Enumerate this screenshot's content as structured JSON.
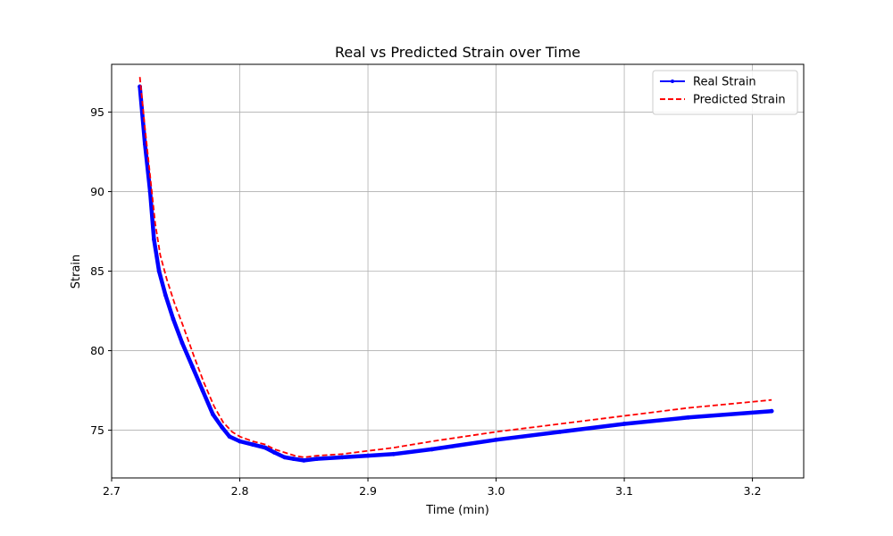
{
  "chart_data": {
    "type": "line",
    "title": "Real vs Predicted Strain over Time",
    "xlabel": "Time (min)",
    "ylabel": "Strain",
    "xlim": [
      2.7,
      3.24
    ],
    "ylim": [
      72,
      98
    ],
    "xticks": [
      2.7,
      2.8,
      2.9,
      3.0,
      3.1,
      3.2
    ],
    "xtick_labels": [
      "2.7",
      "2.8",
      "2.9",
      "3.0",
      "3.1",
      "3.2"
    ],
    "yticks": [
      75,
      80,
      85,
      90,
      95
    ],
    "ytick_labels": [
      "75",
      "80",
      "85",
      "90",
      "95"
    ],
    "grid": true,
    "legend": "top-right",
    "series": [
      {
        "name": "Real Strain",
        "color": "#0000ff",
        "style": "solid-markers",
        "x": [
          2.722,
          2.726,
          2.73,
          2.733,
          2.737,
          2.742,
          2.748,
          2.755,
          2.763,
          2.771,
          2.779,
          2.786,
          2.792,
          2.8,
          2.81,
          2.82,
          2.827,
          2.835,
          2.842,
          2.85,
          2.86,
          2.88,
          2.9,
          2.92,
          2.95,
          3.0,
          3.05,
          3.1,
          3.15,
          3.215
        ],
        "y": [
          96.6,
          93.0,
          90.0,
          87.0,
          85.0,
          83.5,
          82.0,
          80.5,
          79.0,
          77.5,
          76.0,
          75.2,
          74.6,
          74.3,
          74.1,
          73.9,
          73.6,
          73.3,
          73.2,
          73.1,
          73.2,
          73.3,
          73.4,
          73.5,
          73.8,
          74.4,
          74.9,
          75.4,
          75.8,
          76.2
        ]
      },
      {
        "name": "Predicted Strain",
        "color": "#ff0000",
        "style": "dashed",
        "x": [
          2.722,
          2.726,
          2.73,
          2.734,
          2.738,
          2.743,
          2.749,
          2.756,
          2.764,
          2.772,
          2.78,
          2.787,
          2.794,
          2.8,
          2.81,
          2.82,
          2.827,
          2.835,
          2.843,
          2.85,
          2.86,
          2.88,
          2.9,
          2.92,
          2.95,
          3.0,
          3.05,
          3.1,
          3.15,
          3.215
        ],
        "y": [
          97.2,
          94.0,
          91.0,
          88.0,
          86.0,
          84.5,
          83.0,
          81.5,
          79.7,
          78.0,
          76.5,
          75.5,
          74.9,
          74.6,
          74.3,
          74.1,
          73.8,
          73.6,
          73.4,
          73.3,
          73.4,
          73.5,
          73.7,
          73.9,
          74.3,
          74.9,
          75.4,
          75.9,
          76.4,
          76.9
        ]
      }
    ]
  }
}
